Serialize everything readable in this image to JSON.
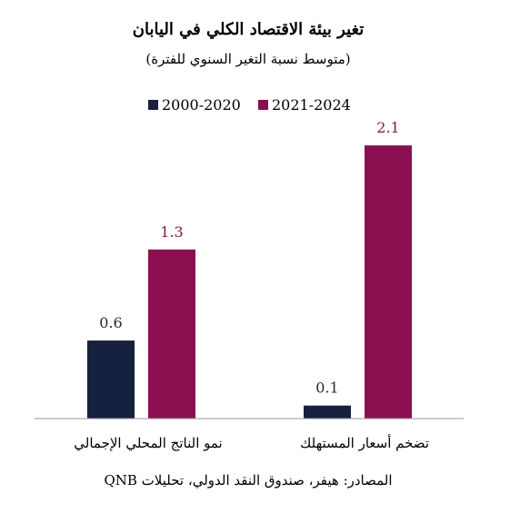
{
  "chart_data": {
    "type": "bar",
    "title": "تغير بيئة الاقتصاد الكلي في اليابان",
    "subtitle": "(متوسط نسبة التغير السنوي للفترة)",
    "categories": [
      "نمو الناتج المحلي الإجمالي",
      "تضخم أسعار المستهلك"
    ],
    "series": [
      {
        "name": "2000-2020",
        "values": [
          0.6,
          0.1
        ],
        "color": "#16213f"
      },
      {
        "name": "2021-2024",
        "values": [
          1.3,
          2.1
        ],
        "color": "#8b0f50"
      }
    ],
    "ylim": [
      0,
      2.45
    ],
    "grid": false,
    "legend": "top",
    "data_labels": true,
    "source": "المصادر: هيفر، صندوق النقد الدولي، تحليلات QNB"
  }
}
